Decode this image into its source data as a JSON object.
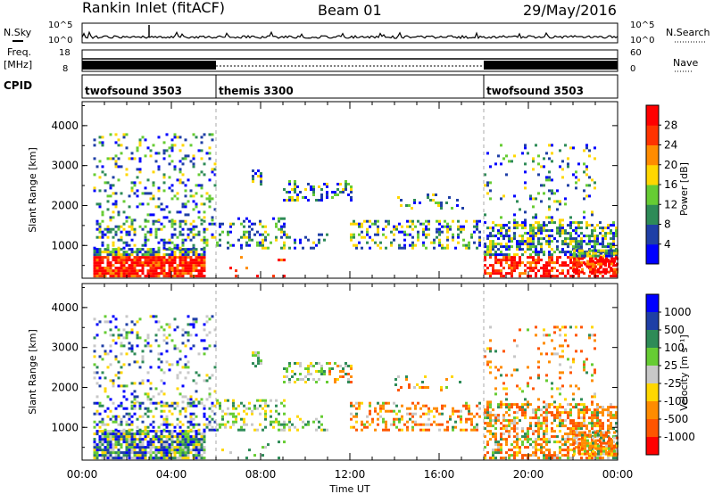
{
  "header": {
    "title": "Rankin Inlet (fitACF)",
    "beam": "Beam 01",
    "date": "29/May/2016"
  },
  "noise_panel": {
    "left_label": "N.Sky",
    "right_label": "N.Search",
    "ticks_left": [
      "10^5",
      "10^0"
    ],
    "ticks_right": [
      "10^5",
      "10^0"
    ]
  },
  "freq_panel": {
    "label_line1": "Freq.",
    "label_line2": "[MHz]",
    "ticks_left": [
      "18",
      "8"
    ],
    "right_label": "Nave",
    "ticks_right": [
      "60",
      "0"
    ]
  },
  "cpid_panel": {
    "label": "CPID",
    "segments": [
      {
        "name": "twofsound 3503",
        "start_hour": 0,
        "end_hour": 6
      },
      {
        "name": "themis 3300",
        "start_hour": 6,
        "end_hour": 18
      },
      {
        "name": "twofsound 3503",
        "start_hour": 18,
        "end_hour": 24
      }
    ]
  },
  "colors": {
    "power": [
      "#0000ff",
      "#1f3fa6",
      "#2e8b57",
      "#66cc33",
      "#ffd700",
      "#ff8c00",
      "#ff3300",
      "#ff0000"
    ],
    "velocity": [
      "#ff0000",
      "#ff5500",
      "#ff8c00",
      "#ffd700",
      "#c8c8c8",
      "#66cc33",
      "#2e8b57",
      "#1f3fa6",
      "#0000ff"
    ]
  },
  "chart_data": [
    {
      "type": "heatmap",
      "name": "power",
      "ylabel": "Slant Range [km]",
      "ylim": [
        180,
        4600
      ],
      "yticks": [
        "1000",
        "2000",
        "3000",
        "4000"
      ],
      "xlim": [
        0,
        24
      ],
      "colorbar_label": "Power [dB]",
      "colorbar_ticks": [
        "4",
        "8",
        "12",
        "16",
        "20",
        "24",
        "28"
      ],
      "colorbar_range": [
        0,
        30
      ]
    },
    {
      "type": "heatmap",
      "name": "velocity",
      "ylabel": "Slant Range [km]",
      "ylim": [
        180,
        4600
      ],
      "yticks": [
        "1000",
        "2000",
        "3000",
        "4000"
      ],
      "xlim": [
        0,
        24
      ],
      "xticks": [
        "00:00",
        "04:00",
        "08:00",
        "12:00",
        "16:00",
        "20:00",
        "00:00"
      ],
      "xlabel": "Time UT",
      "colorbar_label": "Velocity [m s⁻¹]",
      "colorbar_ticks": [
        "1000",
        "500",
        "100",
        "25",
        "-25",
        "-100",
        "-500",
        "-1000"
      ]
    }
  ]
}
